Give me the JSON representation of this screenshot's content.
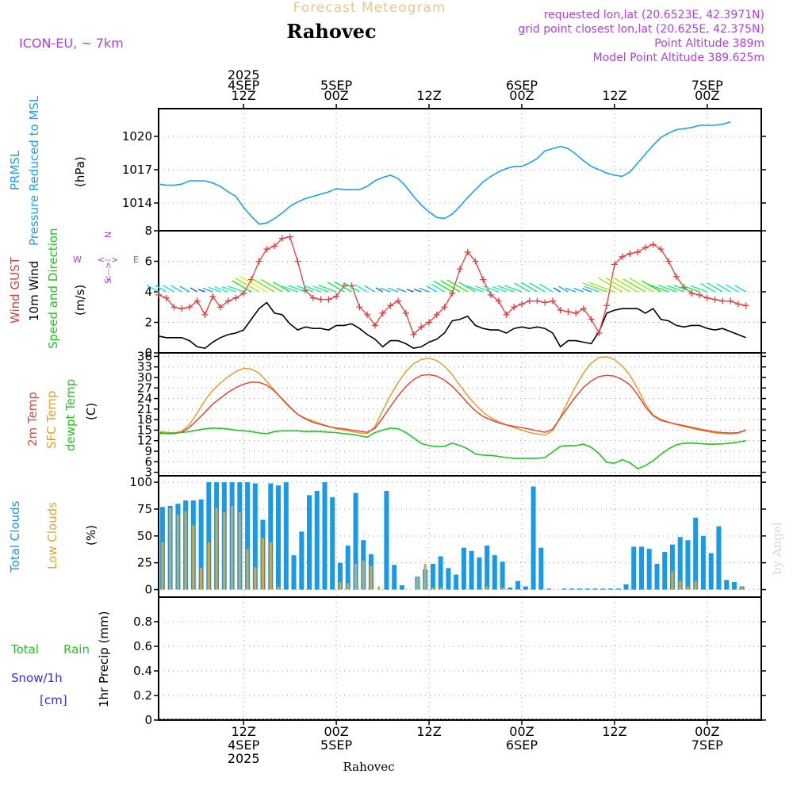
{
  "header": {
    "subtitle": "Forecast Meteogram",
    "location": "Rahovec",
    "model": "ICON-EU, ~ 7km",
    "requested": "requested lon,lat (20.6523E, 42.3971N)",
    "grid_point": "grid point closest lon,lat (20.625E, 42.375N)",
    "point_alt": "Point Altitude 389m",
    "model_alt": "Model Point Altitude 389.625m",
    "footer_location": "Rahovec",
    "watermark": "by Angel"
  },
  "colors": {
    "pressure": "#1aa3e8",
    "gust": "#e83a3a",
    "wind": "#000000",
    "temp2m": "#e04a3a",
    "sfctemp": "#e0a030",
    "dewpt": "#1ec81e",
    "totalcloud": "#189ae8",
    "lowcloud": "#d8a840",
    "rain": "#1ec81e",
    "snow": "#3030e0",
    "purple": "#b040e0"
  },
  "time_axis": {
    "hours_total": 78,
    "top_labels": [
      {
        "hour": 11,
        "lines": [
          "2025",
          "4SEP",
          "12Z"
        ]
      },
      {
        "hour": 23,
        "lines": [
          "5SEP",
          "00Z"
        ]
      },
      {
        "hour": 35,
        "lines": [
          "12Z"
        ]
      },
      {
        "hour": 47,
        "lines": [
          "6SEP",
          "00Z"
        ]
      },
      {
        "hour": 59,
        "lines": [
          "12Z"
        ]
      },
      {
        "hour": 71,
        "lines": [
          "7SEP",
          "00Z"
        ]
      }
    ],
    "bottom_labels": [
      {
        "hour": 11,
        "lines": [
          "12Z",
          "4SEP",
          "2025"
        ]
      },
      {
        "hour": 23,
        "lines": [
          "00Z",
          "5SEP"
        ]
      },
      {
        "hour": 35,
        "lines": [
          "12Z"
        ]
      },
      {
        "hour": 47,
        "lines": [
          "00Z",
          "6SEP"
        ]
      },
      {
        "hour": 59,
        "lines": [
          "12Z"
        ]
      },
      {
        "hour": 71,
        "lines": [
          "00Z",
          "7SEP"
        ]
      }
    ]
  },
  "labels": {
    "pressure": {
      "name": "PRMSL",
      "long": "Pressure Reduced to MSL",
      "unit": "(hPa)"
    },
    "wind": {
      "gust": "Wind GUST",
      "wind10": "10m Wind",
      "speed": "Speed and Direction",
      "unit": "(m/s)",
      "compass": {
        "n": "N",
        "e": "E",
        "s": "S",
        "w": "W"
      }
    },
    "temp": {
      "t2m": "2m Temp",
      "sfc": "SFC Temp",
      "dew": "dewpt Temp",
      "unit": "(C)"
    },
    "cloud": {
      "total": "Total Clouds",
      "low": "Low Clouds",
      "unit": "(%)"
    },
    "precip": {
      "total": "Total",
      "rain": "Rain",
      "snow": "Snow/1h",
      "cm": "[cm]",
      "axis": "1hr Precip (mm)"
    }
  },
  "chart_data": [
    {
      "type": "line",
      "title": "PRMSL Pressure Reduced to MSL",
      "ylabel": "(hPa)",
      "ylim": [
        1011.5,
        1022.5
      ],
      "yticks": [
        1014,
        1017,
        1020
      ],
      "series": [
        {
          "name": "PRMSL",
          "values": [
            1015.7,
            1015.6,
            1015.6,
            1015.7,
            1016.0,
            1016.0,
            1016.0,
            1015.8,
            1015.5,
            1015.0,
            1014.6,
            1013.6,
            1012.8,
            1012.1,
            1012.2,
            1012.6,
            1013.1,
            1013.7,
            1014.1,
            1014.4,
            1014.6,
            1014.8,
            1015.0,
            1015.3,
            1015.2,
            1015.2,
            1015.2,
            1015.5,
            1016.0,
            1016.3,
            1016.5,
            1016.2,
            1015.5,
            1014.6,
            1013.8,
            1013.2,
            1012.7,
            1012.6,
            1013.0,
            1013.7,
            1014.5,
            1015.2,
            1015.9,
            1016.4,
            1016.8,
            1017.1,
            1017.3,
            1017.3,
            1017.6,
            1018.0,
            1018.7,
            1018.9,
            1019.1,
            1018.9,
            1018.4,
            1017.8,
            1017.3,
            1017.0,
            1016.7,
            1016.5,
            1016.4,
            1016.8,
            1017.6,
            1018.4,
            1019.2,
            1019.9,
            1020.3,
            1020.6,
            1020.7,
            1020.8,
            1021.0,
            1021.0,
            1021.0,
            1021.1,
            1021.3
          ]
        }
      ]
    },
    {
      "type": "line",
      "title": "Wind GUST / 10m Wind Speed and Direction",
      "ylabel": "(m/s)",
      "ylim": [
        0,
        8
      ],
      "yticks": [
        0,
        2,
        4,
        6,
        8
      ],
      "series": [
        {
          "name": "Wind GUST",
          "values": [
            3.8,
            3.6,
            3.0,
            2.9,
            3.0,
            3.4,
            2.5,
            3.7,
            3.0,
            3.4,
            3.6,
            3.9,
            4.8,
            6.0,
            6.8,
            7.0,
            7.5,
            7.6,
            6.0,
            4.1,
            3.6,
            3.5,
            3.5,
            3.7,
            4.4,
            4.4,
            3.0,
            2.5,
            1.8,
            2.6,
            3.1,
            3.4,
            2.6,
            1.2,
            1.7,
            2.0,
            2.5,
            3.0,
            3.9,
            5.5,
            6.6,
            6.0,
            4.8,
            3.8,
            3.4,
            2.5,
            3.0,
            3.2,
            3.4,
            3.4,
            3.3,
            3.4,
            2.8,
            2.7,
            2.6,
            2.9,
            2.2,
            1.3,
            3.1,
            5.8,
            6.3,
            6.5,
            6.6,
            6.9,
            7.1,
            6.8,
            6.0,
            5.0,
            4.3,
            3.9,
            3.8,
            3.6,
            3.5,
            3.4,
            3.4,
            3.2,
            3.1
          ]
        },
        {
          "name": "10m Wind",
          "values": [
            1.1,
            1.0,
            1.0,
            1.0,
            0.8,
            0.4,
            0.3,
            0.7,
            1.0,
            1.2,
            1.3,
            1.5,
            2.2,
            2.9,
            3.3,
            2.6,
            2.5,
            1.9,
            1.5,
            1.7,
            1.6,
            1.6,
            1.5,
            1.8,
            1.8,
            1.9,
            1.6,
            1.2,
            0.9,
            0.4,
            0.8,
            0.8,
            0.6,
            0.3,
            0.4,
            0.7,
            0.9,
            1.3,
            2.1,
            2.2,
            2.4,
            1.8,
            1.6,
            1.5,
            1.5,
            1.3,
            1.6,
            1.7,
            1.6,
            1.7,
            1.6,
            1.3,
            0.4,
            0.8,
            0.8,
            0.7,
            0.6,
            1.4,
            2.6,
            2.8,
            2.9,
            2.9,
            2.9,
            2.6,
            2.9,
            2.2,
            2.1,
            1.8,
            1.7,
            1.8,
            1.8,
            1.6,
            1.5,
            1.6,
            1.4,
            1.2,
            1.0
          ]
        }
      ]
    },
    {
      "type": "line",
      "title": "2m Temp / SFC Temp / dewpt Temp",
      "ylabel": "(C)",
      "ylim": [
        2,
        37
      ],
      "yticks": [
        3,
        6,
        9,
        12,
        15,
        18,
        21,
        24,
        27,
        30,
        33,
        36
      ],
      "series": [
        {
          "name": "2m Temp",
          "values": [
            14.3,
            14.0,
            14.0,
            14.4,
            15.8,
            17.9,
            20.1,
            22.4,
            24.1,
            25.8,
            27.1,
            28.1,
            28.7,
            28.6,
            27.8,
            26.1,
            23.9,
            21.6,
            19.5,
            18.2,
            17.2,
            16.6,
            16.0,
            15.6,
            15.4,
            15.0,
            14.7,
            14.4,
            15.5,
            18.5,
            21.7,
            24.8,
            27.4,
            29.4,
            30.6,
            30.8,
            30.4,
            29.2,
            27.5,
            25.2,
            22.7,
            20.5,
            18.9,
            17.9,
            17.1,
            16.5,
            16.1,
            15.7,
            15.3,
            14.8,
            14.4,
            15.3,
            18.5,
            21.6,
            24.6,
            27.2,
            29.0,
            30.3,
            30.6,
            30.4,
            29.4,
            27.9,
            25.1,
            21.6,
            19.1,
            17.8,
            17.2,
            16.7,
            16.3,
            15.8,
            15.3,
            14.9,
            14.5,
            14.3,
            14.2,
            14.3,
            14.9
          ]
        },
        {
          "name": "SFC Temp",
          "values": [
            14.6,
            14.4,
            14.2,
            14.7,
            16.6,
            19.9,
            23.5,
            26.3,
            28.4,
            30.2,
            31.7,
            32.6,
            32.4,
            31.2,
            28.9,
            26.3,
            23.7,
            21.4,
            19.5,
            18.4,
            17.6,
            16.8,
            16.1,
            15.4,
            15.0,
            14.6,
            14.2,
            14.0,
            16.0,
            20.6,
            24.8,
            28.6,
            31.7,
            33.9,
            35.1,
            35.5,
            34.8,
            33.2,
            30.8,
            27.7,
            24.8,
            22.3,
            20.1,
            18.5,
            17.4,
            16.5,
            15.7,
            15.0,
            14.3,
            13.9,
            13.6,
            14.8,
            18.8,
            23.3,
            27.6,
            31.3,
            34.1,
            35.7,
            35.9,
            35.1,
            33.3,
            30.6,
            26.9,
            22.4,
            19.3,
            18.1,
            17.3,
            16.6,
            16.0,
            15.5,
            15.0,
            14.6,
            14.2,
            14.0,
            13.9,
            14.1,
            15.2
          ]
        },
        {
          "name": "dewpt Temp",
          "values": [
            14.0,
            14.1,
            14.2,
            14.3,
            14.6,
            15.0,
            15.4,
            15.6,
            15.5,
            15.3,
            15.0,
            14.8,
            14.6,
            14.2,
            14.0,
            14.6,
            14.8,
            14.8,
            14.8,
            14.6,
            14.7,
            14.6,
            14.4,
            14.3,
            14.0,
            13.8,
            13.4,
            13.0,
            14.3,
            15.0,
            15.6,
            15.4,
            14.3,
            12.8,
            11.2,
            10.6,
            10.3,
            10.4,
            11.3,
            10.6,
            9.7,
            8.2,
            7.9,
            7.8,
            7.5,
            7.2,
            7.0,
            7.0,
            7.0,
            7.0,
            7.2,
            8.8,
            10.4,
            10.6,
            10.6,
            11.0,
            10.1,
            8.3,
            5.8,
            5.6,
            6.6,
            5.7,
            4.0,
            4.9,
            6.3,
            8.1,
            9.7,
            10.8,
            11.3,
            11.3,
            11.2,
            11.0,
            11.0,
            11.1,
            11.3,
            11.6,
            12.0
          ]
        }
      ]
    },
    {
      "type": "bar",
      "title": "Total Clouds / Low Clouds",
      "ylabel": "(%)",
      "ylim": [
        -7,
        106
      ],
      "yticks": [
        0,
        25,
        50,
        75,
        100
      ],
      "series": [
        {
          "name": "Total Clouds",
          "values": [
            77,
            78,
            80,
            83,
            83,
            84,
            100,
            100,
            100,
            100,
            100,
            100,
            99,
            65,
            99,
            97,
            100,
            32,
            54,
            88,
            92,
            100,
            86,
            25,
            41,
            90,
            46,
            33,
            0,
            92,
            23,
            4,
            0,
            12,
            19,
            24,
            31,
            20,
            14,
            39,
            36,
            30,
            41,
            32,
            26,
            2,
            8,
            3,
            96,
            39,
            1,
            0,
            1,
            1,
            1,
            1,
            1,
            1,
            1,
            1,
            5,
            40,
            40,
            38,
            24,
            35,
            42,
            49,
            46,
            67,
            50,
            34,
            59,
            9,
            7,
            3
          ]
        },
        {
          "name": "Low Clouds",
          "values": [
            44,
            76,
            70,
            73,
            60,
            20,
            44,
            76,
            72,
            78,
            72,
            38,
            21,
            48,
            44,
            3,
            0,
            0,
            0,
            0,
            0,
            0,
            0,
            7,
            6,
            24,
            27,
            22,
            3,
            0,
            0,
            0,
            0,
            11,
            24,
            2,
            2,
            0,
            0,
            0,
            0,
            0,
            3,
            0,
            2,
            0,
            0,
            0,
            0,
            0,
            0,
            0,
            0,
            0,
            0,
            0,
            0,
            0,
            0,
            0,
            0,
            0,
            0,
            0,
            0,
            0,
            17,
            8,
            3,
            8,
            0,
            0,
            0,
            0,
            0,
            2
          ]
        }
      ]
    },
    {
      "type": "bar",
      "title": "1hr Precip",
      "ylabel": "1hr Precip (mm)",
      "ylim": [
        0,
        1.0
      ],
      "yticks": [
        0,
        0.2,
        0.4,
        0.6,
        0.8
      ],
      "series": [
        {
          "name": "Total Rain",
          "values": []
        },
        {
          "name": "Snow/1h",
          "values": []
        }
      ]
    }
  ]
}
